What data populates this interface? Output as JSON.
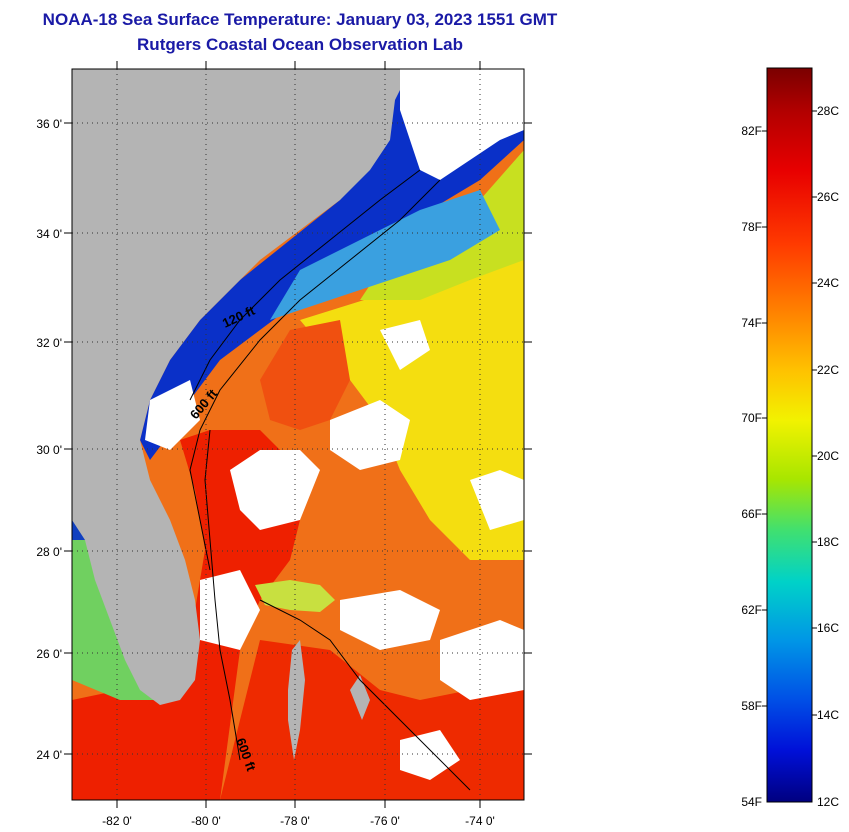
{
  "title": {
    "line1": "NOAA-18 Sea Surface Temperature:  January 03, 2023 1551 GMT",
    "line2": "Rutgers Coastal Ocean Observation Lab"
  },
  "map": {
    "lat_labels": [
      "36 0'",
      "34 0'",
      "32 0'",
      "30 0'",
      "28 0'",
      "26 0'",
      "24 0'"
    ],
    "lon_labels": [
      "-82 0'",
      "-80 0'",
      "-78 0'",
      "-76 0'",
      "-74 0'"
    ],
    "contour_labels": [
      "120 ft",
      "600 ft",
      "600 ft"
    ],
    "colors": {
      "land": "#b4b4b4",
      "cloud": "#ffffff",
      "warm": "#ee2200",
      "orange": "#f57a10",
      "yellow": "#f5e000",
      "cold": "#0a2ac8"
    }
  },
  "colorbar": {
    "fahrenheit": [
      "82F",
      "78F",
      "74F",
      "70F",
      "66F",
      "62F",
      "58F",
      "54F"
    ],
    "celsius": [
      "28C",
      "26C",
      "24C",
      "22C",
      "20C",
      "18C",
      "16C",
      "14C",
      "12C"
    ]
  }
}
